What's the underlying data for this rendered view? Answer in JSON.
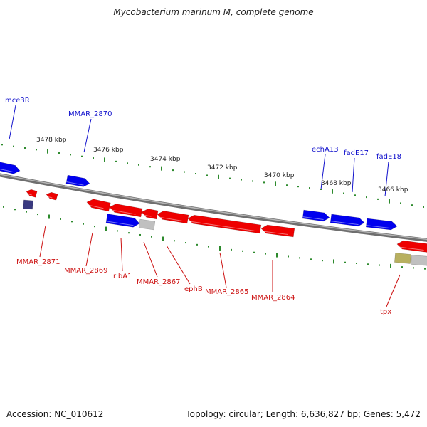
{
  "title": "Mycobacterium marinum M, complete genome",
  "footer": {
    "accession": "Accession: NC_010612",
    "summary": "Topology: circular; Length: 6,636,827 bp; Genes: 5,472"
  },
  "colors": {
    "forward_gene": "#0000ee",
    "reverse_gene": "#ee0000",
    "forward_label": "#1010cc",
    "reverse_label": "#cc1010",
    "backbone": "#8a8a8a",
    "tick": "#2d8a2d",
    "rna": "#c0c0c0",
    "other_feature": "#b8b060",
    "pseudo": "#3a3a80"
  },
  "scale": {
    "unit": "kbp",
    "major_labels": [
      "3478 kbp",
      "3476 kbp",
      "3474 kbp",
      "3472 kbp",
      "3470 kbp",
      "3468 kbp",
      "3466 kbp"
    ]
  },
  "forward_labels": [
    "mce3R",
    "MMAR_2870",
    "echA13",
    "fadE17",
    "fadE18"
  ],
  "reverse_labels": [
    "MMAR_2871",
    "MMAR_2869",
    "ribA1",
    "MMAR_2867",
    "ephB",
    "MMAR_2865",
    "MMAR_2864",
    "tpx"
  ]
}
